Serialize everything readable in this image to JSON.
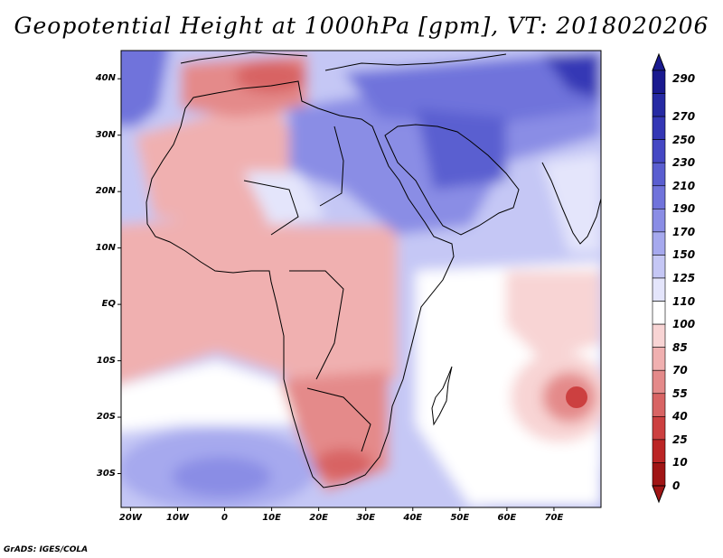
{
  "title": "Geopotential Height at 1000hPa [gpm], VT: 2018020206",
  "credit": "GrADS: IGES/COLA",
  "map": {
    "lat_range": [
      -36,
      45
    ],
    "lon_range": [
      -22,
      80
    ],
    "lat_ticks": [
      "40N",
      "30N",
      "20N",
      "10N",
      "EQ",
      "10S",
      "20S",
      "30S"
    ],
    "lon_ticks": [
      "20W",
      "10W",
      "0",
      "10E",
      "20E",
      "30E",
      "40E",
      "50E",
      "60E",
      "70E"
    ]
  },
  "colorbar": {
    "labels": [
      "290",
      "270",
      "250",
      "230",
      "210",
      "190",
      "170",
      "150",
      "125",
      "110",
      "100",
      "85",
      "70",
      "55",
      "40",
      "25",
      "10",
      "0"
    ],
    "colors": [
      "#1a1a8f",
      "#262aa3",
      "#3437b5",
      "#4548c4",
      "#5a5ed0",
      "#7073db",
      "#8a8de5",
      "#a6a9ee",
      "#c5c7f5",
      "#e4e5fb",
      "#ffffff",
      "#f8d4d4",
      "#f0b0b0",
      "#e48a8a",
      "#d86464",
      "#cc4040",
      "#bb2525",
      "#a01515"
    ]
  }
}
